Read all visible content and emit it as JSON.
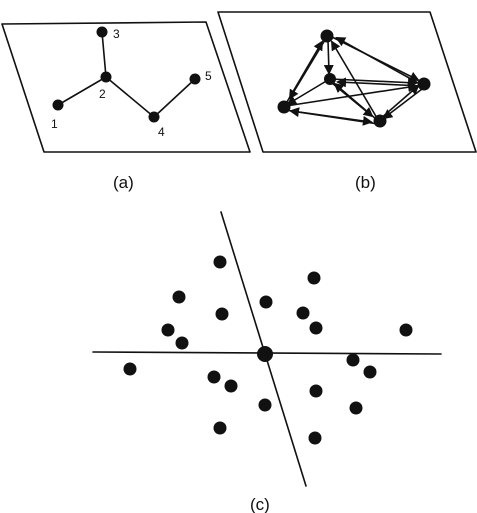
{
  "panel_a": {
    "caption": "(a)",
    "node_labels": [
      "1",
      "2",
      "3",
      "4",
      "5"
    ]
  },
  "panel_b": {
    "caption": "(b)"
  },
  "panel_c": {
    "caption": "(c)"
  },
  "colors": {
    "ink": "#111111",
    "background": "#ffffff"
  }
}
